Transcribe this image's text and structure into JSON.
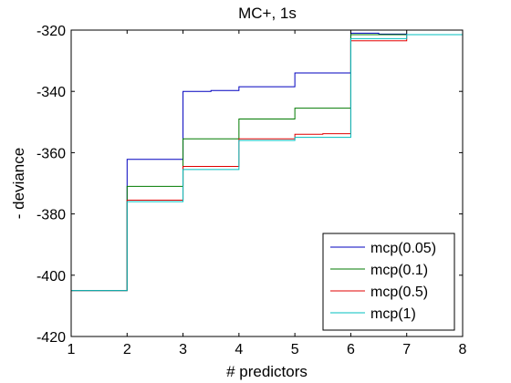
{
  "chart_data": {
    "type": "line",
    "step": true,
    "title": "MC+, 1s",
    "xlabel": "# predictors",
    "ylabel": "- deviance",
    "xlim": [
      1,
      8
    ],
    "ylim": [
      -420,
      -320
    ],
    "xticks": [
      1,
      2,
      3,
      4,
      5,
      6,
      7,
      8
    ],
    "yticks": [
      -420,
      -400,
      -380,
      -360,
      -340,
      -320
    ],
    "grid": false,
    "legend_position": "bottom-right",
    "series": [
      {
        "name": "mcp(0.05)",
        "color": "#0000bf",
        "points": [
          [
            1,
            -405
          ],
          [
            2,
            -362.2
          ],
          [
            3,
            -340
          ],
          [
            3.5,
            -339.7
          ],
          [
            4,
            -338.5
          ],
          [
            5,
            -334
          ],
          [
            6,
            -321
          ],
          [
            6.5,
            -321.3
          ],
          [
            7,
            -321.5
          ],
          [
            8,
            -321.5
          ]
        ]
      },
      {
        "name": "mcp(0.1)",
        "color": "#007a00",
        "points": [
          [
            1,
            -405
          ],
          [
            2,
            -371
          ],
          [
            3,
            -355.5
          ],
          [
            4,
            -349
          ],
          [
            5,
            -345.5
          ],
          [
            6,
            -321.5
          ],
          [
            7,
            -321.5
          ],
          [
            8,
            -321.5
          ]
        ]
      },
      {
        "name": "mcp(0.5)",
        "color": "#e00000",
        "points": [
          [
            1,
            -405
          ],
          [
            2,
            -375.5
          ],
          [
            3,
            -364.5
          ],
          [
            4,
            -355.5
          ],
          [
            5,
            -354
          ],
          [
            5.5,
            -353.8
          ],
          [
            6,
            -323.5
          ],
          [
            7,
            -321.5
          ],
          [
            8,
            -321.5
          ]
        ]
      },
      {
        "name": "mcp(1)",
        "color": "#00bfbf",
        "points": [
          [
            1,
            -405
          ],
          [
            2,
            -376
          ],
          [
            3,
            -365.5
          ],
          [
            4,
            -356
          ],
          [
            5,
            -355
          ],
          [
            6,
            -322.8
          ],
          [
            7,
            -321.5
          ],
          [
            8,
            -321.5
          ]
        ]
      }
    ]
  }
}
